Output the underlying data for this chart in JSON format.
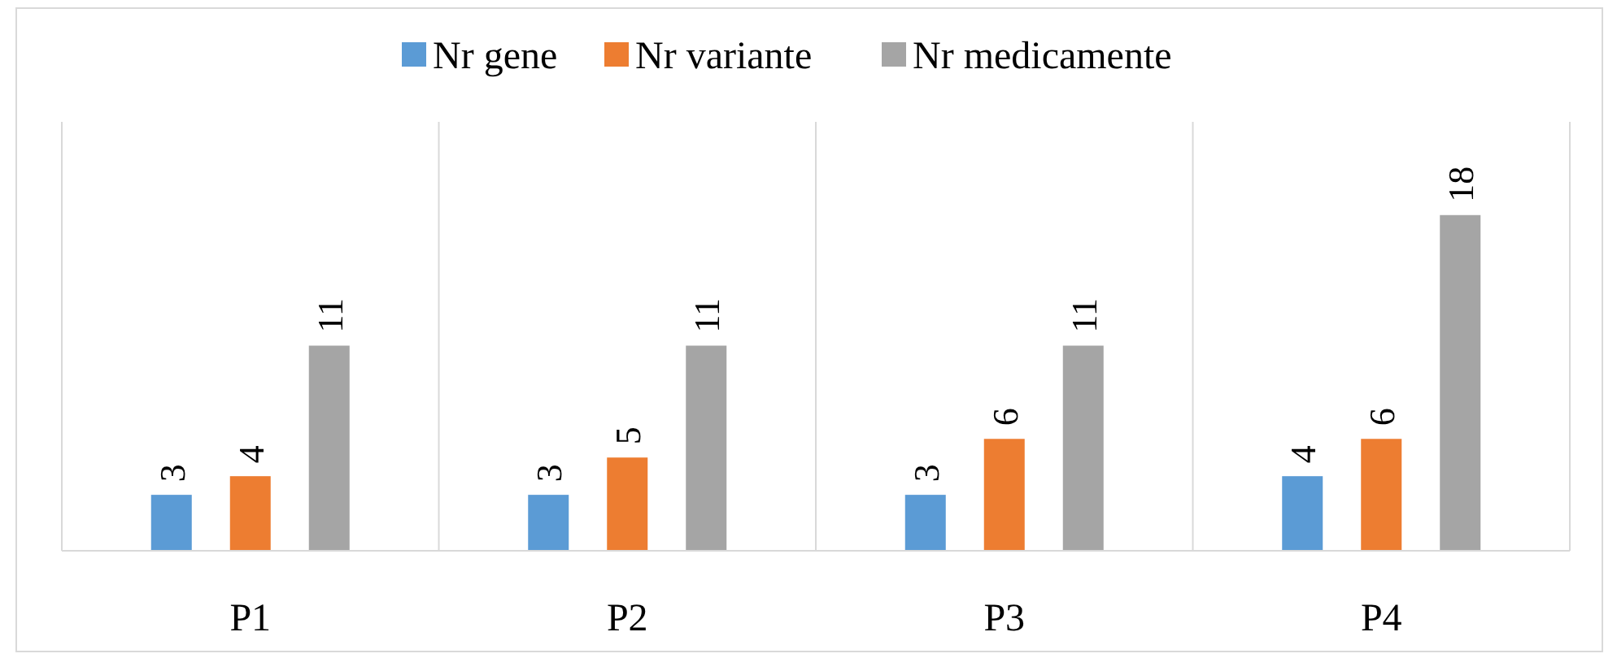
{
  "chart_data": {
    "type": "bar",
    "categories": [
      "P1",
      "P2",
      "P3",
      "P4"
    ],
    "series": [
      {
        "name": "Nr gene",
        "color": "#5b9bd5",
        "values": [
          3,
          3,
          3,
          4
        ]
      },
      {
        "name": "Nr variante",
        "color": "#ed7d31",
        "values": [
          4,
          5,
          6,
          6
        ]
      },
      {
        "name": "Nr medicamente",
        "color": "#a5a5a5",
        "values": [
          11,
          11,
          11,
          18
        ]
      }
    ],
    "ylim": [
      0,
      23
    ],
    "data_labels": true,
    "legend": "top",
    "grid": "x"
  }
}
